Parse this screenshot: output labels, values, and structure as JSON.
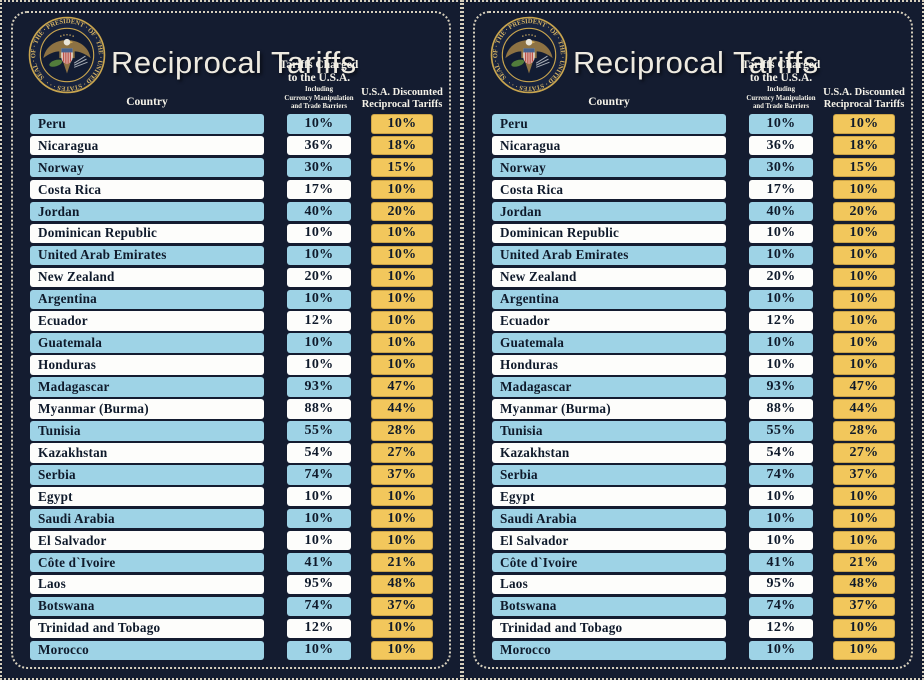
{
  "board": {
    "title": "Reciprocal Tariffs",
    "seal_ring_text": "SEAL · OF · THE · PRESIDENT · OF · THE · UNITED · STATES · · ·",
    "header": {
      "country": "Country",
      "charged_title_line1": "Tariffs Charged",
      "charged_title_line2": "to the U.S.A.",
      "charged_sub_line1": "Including",
      "charged_sub_line2": "Currency Manipulation",
      "charged_sub_line3": "and Trade Barriers",
      "discounted_title_line1": "U.S.A. Discounted",
      "discounted_title_line2": "Reciprocal Tariffs"
    },
    "panel_count": 2
  },
  "colors": {
    "background": "#141c30",
    "row_blue": "#9ed3e6",
    "row_white": "#fdfdfb",
    "gold": "#f2c75c",
    "text_dark": "#0f1a2b",
    "text_cream": "#f5f2e8",
    "border_dots": "#d5cebc",
    "seal_gold": "#c9a54e",
    "seal_text_gold": "#d4b264"
  },
  "chart_data": {
    "type": "table",
    "title": "Reciprocal Tariffs",
    "columns": [
      "Country",
      "Tariffs Charged to the U.S.A. Including Currency Manipulation and Trade Barriers",
      "U.S.A. Discounted Reciprocal Tariffs"
    ],
    "rows": [
      [
        "Peru",
        "10%",
        "10%"
      ],
      [
        "Nicaragua",
        "36%",
        "18%"
      ],
      [
        "Norway",
        "30%",
        "15%"
      ],
      [
        "Costa Rica",
        "17%",
        "10%"
      ],
      [
        "Jordan",
        "40%",
        "20%"
      ],
      [
        "Dominican Republic",
        "10%",
        "10%"
      ],
      [
        "United Arab Emirates",
        "10%",
        "10%"
      ],
      [
        "New Zealand",
        "20%",
        "10%"
      ],
      [
        "Argentina",
        "10%",
        "10%"
      ],
      [
        "Ecuador",
        "12%",
        "10%"
      ],
      [
        "Guatemala",
        "10%",
        "10%"
      ],
      [
        "Honduras",
        "10%",
        "10%"
      ],
      [
        "Madagascar",
        "93%",
        "47%"
      ],
      [
        "Myanmar (Burma)",
        "88%",
        "44%"
      ],
      [
        "Tunisia",
        "55%",
        "28%"
      ],
      [
        "Kazakhstan",
        "54%",
        "27%"
      ],
      [
        "Serbia",
        "74%",
        "37%"
      ],
      [
        "Egypt",
        "10%",
        "10%"
      ],
      [
        "Saudi Arabia",
        "10%",
        "10%"
      ],
      [
        "El Salvador",
        "10%",
        "10%"
      ],
      [
        "Côte d`Ivoire",
        "41%",
        "21%"
      ],
      [
        "Laos",
        "95%",
        "48%"
      ],
      [
        "Botswana",
        "74%",
        "37%"
      ],
      [
        "Trinidad and Tobago",
        "12%",
        "10%"
      ],
      [
        "Morocco",
        "10%",
        "10%"
      ]
    ]
  }
}
